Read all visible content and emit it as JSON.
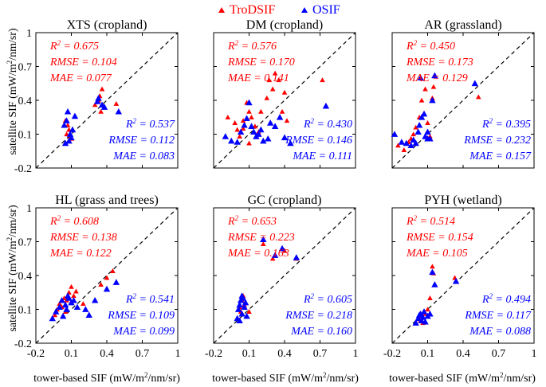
{
  "legend": {
    "items": [
      {
        "label": "TroDSIF",
        "color": "#ff0000",
        "marker": "triangle"
      },
      {
        "label": "OSIF",
        "color": "#0000ff",
        "marker": "triangle"
      }
    ]
  },
  "axes": {
    "ylabel_main": "satellite SIF (mW/m",
    "ylabel_sup": "2",
    "ylabel_end": "/nm/sr)",
    "xlabel_main": "tower-based SIF (mW/m",
    "xlabel_sup": "2",
    "xlabel_end": "/nm/sr)",
    "tick_labels": [
      "-0.2",
      "0.1",
      "0.4",
      "0.7",
      "1"
    ],
    "ticks": [
      -0.2,
      0.1,
      0.4,
      0.7,
      1.0
    ],
    "xlim": [
      -0.2,
      1.0
    ],
    "ylim": [
      -0.2,
      1.0
    ]
  },
  "stat_labels": {
    "r2_main": "R",
    "r2_sup": "2",
    "rmse": "RMSE",
    "mae": "MAE"
  },
  "colors": {
    "trodsif": "#ff0000",
    "osif": "#0000ff",
    "axis": "#000000"
  },
  "chart_data": [
    {
      "type": "scatter",
      "title": "XTS (cropland)",
      "xlim": [
        -0.2,
        1.0
      ],
      "ylim": [
        -0.2,
        1.0
      ],
      "stats": {
        "TroDSIF": {
          "r2": "0.675",
          "rmse": "0.104",
          "mae": "0.077"
        },
        "OSIF": {
          "r2": "0.537",
          "rmse": "0.112",
          "mae": "0.083"
        }
      },
      "series": [
        {
          "name": "TroDSIF",
          "points": [
            [
              0.05,
              0.22
            ],
            [
              0.07,
              0.18
            ],
            [
              0.08,
              0.14
            ],
            [
              0.06,
              0.1
            ],
            [
              0.09,
              0.08
            ],
            [
              0.1,
              0.06
            ],
            [
              0.3,
              0.36
            ],
            [
              0.33,
              0.4
            ],
            [
              0.34,
              0.44
            ],
            [
              0.36,
              0.5
            ],
            [
              0.48,
              0.37
            ],
            [
              0.35,
              0.3
            ]
          ]
        },
        {
          "name": "OSIF",
          "points": [
            [
              0.04,
              0.18
            ],
            [
              0.06,
              0.22
            ],
            [
              0.07,
              0.3
            ],
            [
              0.08,
              0.04
            ],
            [
              0.09,
              0.1
            ],
            [
              0.1,
              0.07
            ],
            [
              0.11,
              0.14
            ],
            [
              0.13,
              0.26
            ],
            [
              0.32,
              0.39
            ],
            [
              0.33,
              0.42
            ],
            [
              0.36,
              0.36
            ],
            [
              0.38,
              0.34
            ],
            [
              0.5,
              0.3
            ],
            [
              0.05,
              0.02
            ]
          ]
        }
      ]
    },
    {
      "type": "scatter",
      "title": "DM (cropland)",
      "xlim": [
        -0.2,
        1.0
      ],
      "ylim": [
        -0.2,
        1.0
      ],
      "stats": {
        "TroDSIF": {
          "r2": "0.576",
          "rmse": "0.170",
          "mae": "0.141"
        },
        "OSIF": {
          "r2": "0.430",
          "rmse": "0.146",
          "mae": "0.111"
        }
      },
      "series": [
        {
          "name": "TroDSIF",
          "points": [
            [
              -0.08,
              0.25
            ],
            [
              -0.02,
              0.2
            ],
            [
              0.0,
              0.14
            ],
            [
              0.02,
              0.08
            ],
            [
              0.05,
              0.22
            ],
            [
              0.08,
              0.38
            ],
            [
              0.1,
              0.3
            ],
            [
              0.12,
              0.25
            ],
            [
              0.15,
              0.17
            ],
            [
              0.18,
              0.12
            ],
            [
              0.2,
              0.3
            ],
            [
              0.25,
              0.42
            ],
            [
              0.27,
              0.58
            ],
            [
              0.3,
              0.5
            ],
            [
              0.32,
              0.64
            ],
            [
              0.35,
              0.58
            ],
            [
              0.38,
              0.3
            ],
            [
              0.4,
              0.47
            ],
            [
              0.42,
              0.22
            ],
            [
              0.72,
              0.58
            ],
            [
              0.1,
              0.02
            ],
            [
              0.05,
              0.15
            ]
          ]
        },
        {
          "name": "OSIF",
          "points": [
            [
              -0.1,
              0.08
            ],
            [
              -0.05,
              0.04
            ],
            [
              0.0,
              0.03
            ],
            [
              0.03,
              0.12
            ],
            [
              0.06,
              0.18
            ],
            [
              0.08,
              0.24
            ],
            [
              0.1,
              0.38
            ],
            [
              0.12,
              0.17
            ],
            [
              0.14,
              0.12
            ],
            [
              0.16,
              0.08
            ],
            [
              0.2,
              0.14
            ],
            [
              0.22,
              0.04
            ],
            [
              0.28,
              0.2
            ],
            [
              0.32,
              0.17
            ],
            [
              0.36,
              0.25
            ],
            [
              0.4,
              0.07
            ],
            [
              0.45,
              0.02
            ],
            [
              0.75,
              0.35
            ],
            [
              0.18,
              0.1
            ],
            [
              0.26,
              0.06
            ]
          ]
        }
      ]
    },
    {
      "type": "scatter",
      "title": "AR (grassland)",
      "xlim": [
        -0.2,
        1.0
      ],
      "ylim": [
        -0.2,
        1.0
      ],
      "stats": {
        "TroDSIF": {
          "r2": "0.450",
          "rmse": "0.173",
          "mae": "0.129"
        },
        "OSIF": {
          "r2": "0.395",
          "rmse": "0.232",
          "mae": "0.157"
        }
      },
      "series": [
        {
          "name": "TroDSIF",
          "points": [
            [
              -0.15,
              0.0
            ],
            [
              -0.1,
              -0.04
            ],
            [
              -0.06,
              0.03
            ],
            [
              -0.04,
              0.06
            ],
            [
              -0.02,
              0.1
            ],
            [
              0.0,
              0.16
            ],
            [
              0.03,
              0.25
            ],
            [
              0.05,
              0.4
            ],
            [
              0.08,
              0.5
            ],
            [
              0.1,
              0.2
            ],
            [
              0.14,
              0.42
            ],
            [
              0.15,
              0.52
            ],
            [
              0.53,
              0.43
            ],
            [
              0.12,
              0.08
            ]
          ]
        },
        {
          "name": "OSIF",
          "points": [
            [
              -0.18,
              0.1
            ],
            [
              -0.12,
              0.03
            ],
            [
              -0.08,
              0.02
            ],
            [
              -0.04,
              0.0
            ],
            [
              -0.02,
              0.05
            ],
            [
              0.0,
              0.02
            ],
            [
              0.02,
              0.12
            ],
            [
              0.03,
              0.18
            ],
            [
              0.05,
              0.25
            ],
            [
              0.07,
              0.28
            ],
            [
              0.08,
              0.08
            ],
            [
              0.1,
              0.12
            ],
            [
              0.12,
              0.06
            ],
            [
              0.14,
              0.4
            ],
            [
              0.16,
              0.62
            ],
            [
              0.5,
              0.55
            ],
            [
              0.04,
              0.6
            ],
            [
              0.1,
              0.06
            ]
          ]
        }
      ]
    },
    {
      "type": "scatter",
      "title": "HL (grass and trees)",
      "xlim": [
        -0.2,
        1.0
      ],
      "ylim": [
        -0.2,
        1.0
      ],
      "stats": {
        "TroDSIF": {
          "r2": "0.608",
          "rmse": "0.138",
          "mae": "0.122"
        },
        "OSIF": {
          "r2": "0.541",
          "rmse": "0.109",
          "mae": "0.099"
        }
      },
      "series": [
        {
          "name": "TroDSIF",
          "points": [
            [
              -0.04,
              0.05
            ],
            [
              -0.02,
              0.1
            ],
            [
              0.0,
              0.15
            ],
            [
              0.02,
              0.12
            ],
            [
              0.04,
              0.2
            ],
            [
              0.06,
              0.18
            ],
            [
              0.08,
              0.25
            ],
            [
              0.1,
              0.3
            ],
            [
              0.12,
              0.22
            ],
            [
              0.14,
              0.26
            ],
            [
              0.2,
              0.15
            ],
            [
              0.35,
              0.32
            ],
            [
              0.4,
              0.38
            ],
            [
              0.45,
              0.44
            ],
            [
              0.05,
              0.08
            ]
          ]
        },
        {
          "name": "OSIF",
          "points": [
            [
              -0.06,
              0.02
            ],
            [
              -0.03,
              0.08
            ],
            [
              0.0,
              0.12
            ],
            [
              0.02,
              0.18
            ],
            [
              0.03,
              0.04
            ],
            [
              0.05,
              0.14
            ],
            [
              0.06,
              0.1
            ],
            [
              0.08,
              0.2
            ],
            [
              0.1,
              0.16
            ],
            [
              0.12,
              0.18
            ],
            [
              0.15,
              0.12
            ],
            [
              0.22,
              0.1
            ],
            [
              0.3,
              0.18
            ],
            [
              0.4,
              0.28
            ],
            [
              0.48,
              0.34
            ],
            [
              0.25,
              0.05
            ],
            [
              0.07,
              0.22
            ]
          ]
        }
      ]
    },
    {
      "type": "scatter",
      "title": "GC (cropland)",
      "xlim": [
        -0.2,
        1.0
      ],
      "ylim": [
        -0.2,
        1.0
      ],
      "stats": {
        "TroDSIF": {
          "r2": "0.653",
          "rmse": "0.223",
          "mae": "0.163"
        },
        "OSIF": {
          "r2": "0.605",
          "rmse": "0.218",
          "mae": "0.160"
        }
      },
      "series": [
        {
          "name": "TroDSIF",
          "points": [
            [
              0.02,
              0.12
            ],
            [
              0.04,
              0.18
            ],
            [
              0.05,
              0.22
            ],
            [
              0.06,
              0.14
            ],
            [
              0.1,
              0.08
            ],
            [
              0.22,
              0.68
            ],
            [
              0.3,
              0.55
            ],
            [
              0.4,
              0.62
            ],
            [
              0.5,
              0.55
            ],
            [
              0.03,
              0.08
            ]
          ]
        },
        {
          "name": "OSIF",
          "points": [
            [
              0.0,
              0.02
            ],
            [
              0.01,
              0.1
            ],
            [
              0.02,
              0.14
            ],
            [
              0.03,
              0.18
            ],
            [
              0.04,
              0.06
            ],
            [
              0.05,
              0.2
            ],
            [
              0.06,
              0.12
            ],
            [
              0.07,
              0.16
            ],
            [
              0.08,
              0.04
            ],
            [
              0.22,
              0.72
            ],
            [
              0.32,
              0.58
            ],
            [
              0.38,
              0.64
            ],
            [
              0.5,
              0.56
            ],
            [
              0.04,
              0.22
            ],
            [
              0.02,
              0.0
            ]
          ]
        }
      ]
    },
    {
      "type": "scatter",
      "title": "PYH (wetland)",
      "xlim": [
        -0.2,
        1.0
      ],
      "ylim": [
        -0.2,
        1.0
      ],
      "stats": {
        "TroDSIF": {
          "r2": "0.514",
          "rmse": "0.154",
          "mae": "0.105"
        },
        "OSIF": {
          "r2": "0.494",
          "rmse": "0.117",
          "mae": "0.088"
        }
      },
      "series": [
        {
          "name": "TroDSIF",
          "points": [
            [
              0.02,
              0.02
            ],
            [
              0.04,
              0.0
            ],
            [
              0.06,
              -0.02
            ],
            [
              0.08,
              0.06
            ],
            [
              0.1,
              0.1
            ],
            [
              0.12,
              0.2
            ],
            [
              0.14,
              0.48
            ],
            [
              0.15,
              0.42
            ],
            [
              0.33,
              0.38
            ],
            [
              0.05,
              0.04
            ]
          ]
        },
        {
          "name": "OSIF",
          "points": [
            [
              0.0,
              -0.02
            ],
            [
              0.02,
              0.02
            ],
            [
              0.03,
              0.05
            ],
            [
              0.04,
              0.06
            ],
            [
              0.05,
              0.0
            ],
            [
              0.06,
              0.03
            ],
            [
              0.07,
              0.08
            ],
            [
              0.1,
              0.04
            ],
            [
              0.12,
              0.06
            ],
            [
              0.14,
              0.43
            ],
            [
              0.16,
              0.32
            ],
            [
              0.34,
              0.35
            ],
            [
              0.08,
              -0.01
            ]
          ]
        }
      ]
    }
  ]
}
